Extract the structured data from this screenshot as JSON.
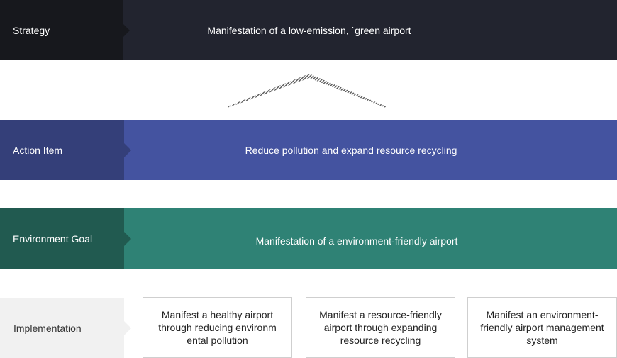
{
  "strategy": {
    "label": "Strategy",
    "text": "Manifestation of a low-emission, `green airport"
  },
  "action_item": {
    "label": "Action Item",
    "text": "Reduce pollution and expand resource recycling"
  },
  "environment_goal": {
    "label": "Environment Goal",
    "text": "Manifestation of a environment-friendly airport"
  },
  "implementation": {
    "label": "Implementation",
    "items": [
      "Manifest a healthy airport through reducing environm ental pollution",
      "Manifest a resource-friendly airport through expanding resource recycling",
      "Manifest an environment-friendly airport management system"
    ]
  },
  "colors": {
    "strategy_bg": "#22242f",
    "action_bg": "#4453a0",
    "goal_bg": "#2f8275",
    "implementation_bg": "#f1f1f1"
  },
  "icons": {
    "connector": "hatched-chevron-up-icon"
  }
}
